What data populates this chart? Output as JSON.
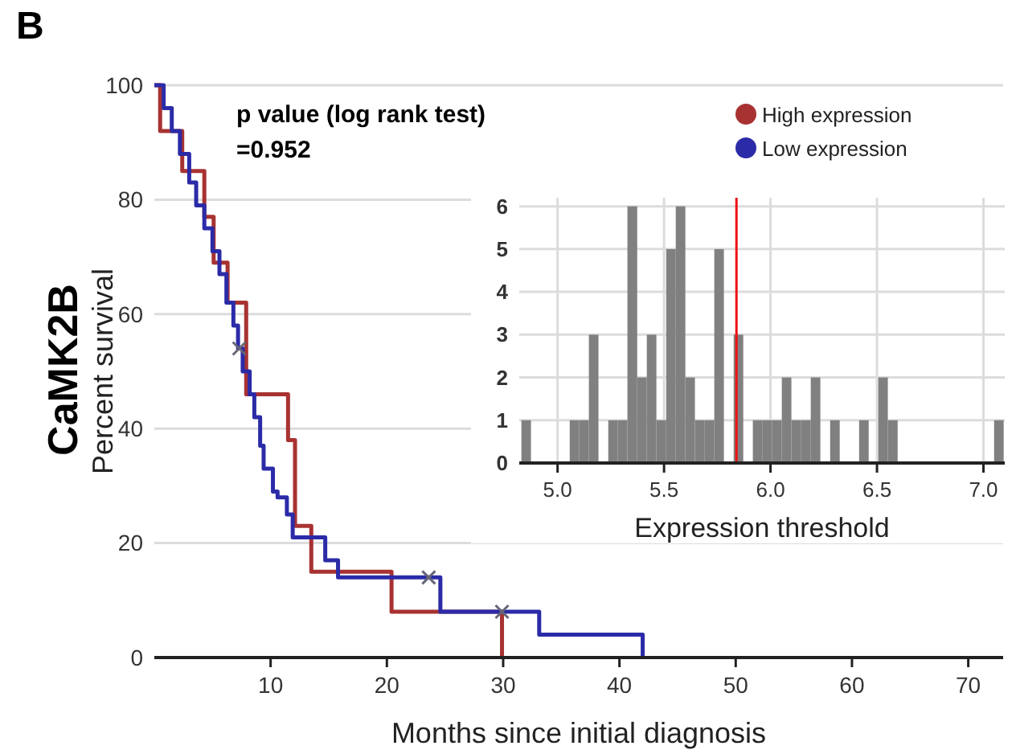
{
  "chart_data": [
    {
      "type": "step",
      "xlabel": "Months since initial diagnosis",
      "ylabel": "Percent survival",
      "annotations": [
        "B",
        "CaMK2B",
        "p value (log rank test)\n=0.952"
      ],
      "xlim": [
        0,
        73
      ],
      "ylim": [
        0,
        100
      ],
      "xticks": [
        10,
        20,
        30,
        40,
        50,
        60,
        70
      ],
      "yticks": [
        0,
        20,
        40,
        60,
        80,
        100
      ],
      "grid": "y",
      "legend": "top right",
      "series": [
        {
          "type": "step",
          "name": "High expression",
          "color": "#a83232",
          "x": [
            0,
            0.5,
            2.4,
            4.3,
            5.1,
            6.3,
            7.9,
            11.5,
            12.1,
            13.5,
            20.4,
            29.9
          ],
          "values": [
            100,
            92,
            85,
            77,
            69,
            62,
            46,
            38,
            23,
            15,
            8,
            0
          ]
        },
        {
          "type": "step",
          "name": "Low expression",
          "color": "#2b2ba8",
          "x": [
            0,
            0.8,
            1.5,
            2.2,
            3,
            3.6,
            4.3,
            5,
            5.6,
            6.2,
            6.8,
            7.2,
            7.6,
            8.2,
            8.6,
            9.1,
            9.4,
            10.2,
            10.6,
            11.4,
            11.9,
            14.7,
            15.8,
            24.6,
            33.1,
            42
          ],
          "values": [
            100,
            96,
            92,
            88,
            83,
            79,
            75,
            71,
            67,
            62,
            58,
            54,
            50,
            46,
            42,
            37,
            33,
            29,
            28,
            25,
            21,
            17,
            14,
            8,
            4,
            0
          ]
        },
        {
          "type": "scatter",
          "color": "#666677",
          "marker": "cross",
          "x": [
            7.3,
            23.6,
            29.9
          ],
          "values": [
            54,
            14,
            8
          ]
        }
      ]
    },
    {
      "type": "histogram",
      "xlabel": "Expression threshold",
      "xlim": [
        4.82,
        7.1
      ],
      "ylim": [
        0,
        6.2
      ],
      "xticks": [
        {
          "value": 5,
          "label": "5.0"
        },
        {
          "value": 5.5,
          "label": "5.5"
        },
        {
          "value": 6,
          "label": "6.0"
        },
        {
          "value": 6.5,
          "label": "6.5"
        },
        {
          "value": 7,
          "label": "7.0"
        }
      ],
      "yticks": [
        0,
        1,
        2,
        3,
        4,
        5,
        6
      ],
      "grid": true,
      "color": "#808080",
      "bins": [
        4.83,
        4.875,
        4.921,
        4.966,
        5.011,
        5.057,
        5.102,
        5.147,
        5.192,
        5.238,
        5.283,
        5.328,
        5.374,
        5.419,
        5.464,
        5.51,
        5.555,
        5.6,
        5.645,
        5.691,
        5.736,
        5.781,
        5.827,
        5.872,
        5.917,
        5.963,
        6.008,
        6.053,
        6.098,
        6.144,
        6.189,
        6.234,
        6.28,
        6.325,
        6.37,
        6.416,
        6.461,
        6.506,
        6.551,
        6.597,
        6.642,
        6.687,
        6.733,
        6.778,
        6.823,
        6.869,
        6.914,
        6.959,
        7.004,
        7.05,
        7.095
      ],
      "values": [
        1,
        0,
        0,
        0,
        0,
        1,
        1,
        3,
        0,
        1,
        1,
        6,
        2,
        3,
        1,
        5,
        6,
        2,
        1,
        1,
        5,
        0,
        3,
        0,
        1,
        1,
        1,
        2,
        1,
        1,
        2,
        0,
        1,
        0,
        0,
        1,
        0,
        2,
        1,
        0,
        0,
        0,
        0,
        0,
        0,
        0,
        0,
        0,
        0,
        1
      ],
      "ref_lines": [
        {
          "axis": "x",
          "value": 5.84,
          "color": "#ee1111"
        }
      ]
    }
  ]
}
